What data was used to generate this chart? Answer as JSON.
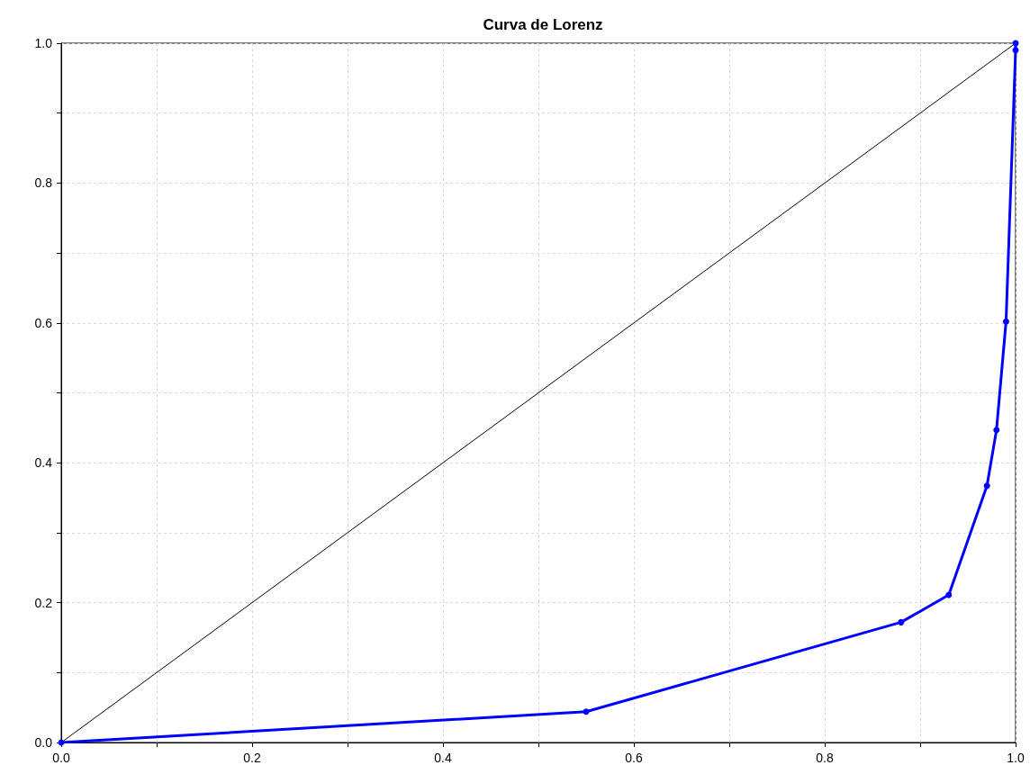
{
  "chart_data": {
    "type": "line",
    "title": "Curva de Lorenz",
    "series": [
      {
        "color": "#000000",
        "marker": "none",
        "x": [
          0,
          1
        ],
        "values": [
          0,
          1
        ]
      },
      {
        "color": "#0000ff",
        "marker": "circle",
        "x": [
          0,
          0.55,
          0.88,
          0.93,
          0.97,
          0.98,
          0.99,
          1.0,
          1.0
        ],
        "values": [
          0,
          0.044,
          0.172,
          0.211,
          0.367,
          0.447,
          0.602,
          0.99,
          1.0
        ]
      }
    ],
    "xlim": [
      0,
      1
    ],
    "ylim": [
      0,
      1
    ],
    "xticks": [
      {
        "value": 0,
        "label": "0.0"
      },
      {
        "value": 0.1,
        "label": null
      },
      0.2,
      {
        "value": 0.3,
        "label": null
      },
      0.4,
      {
        "value": 0.5,
        "label": null
      },
      0.6,
      {
        "value": 0.7,
        "label": null
      },
      0.8,
      {
        "value": 0.9,
        "label": null
      },
      {
        "value": 1,
        "label": "1.0"
      }
    ],
    "yticks": [
      {
        "value": 0,
        "label": "0.0"
      },
      {
        "value": 0.1,
        "label": null
      },
      0.2,
      {
        "value": 0.3,
        "label": null
      },
      0.4,
      {
        "value": 0.5,
        "label": null
      },
      0.6,
      {
        "value": 0.7,
        "label": null
      },
      0.8,
      {
        "value": 0.9,
        "label": null
      },
      {
        "value": 1,
        "label": "1.0"
      }
    ],
    "grid": true,
    "line_style": "solid"
  }
}
